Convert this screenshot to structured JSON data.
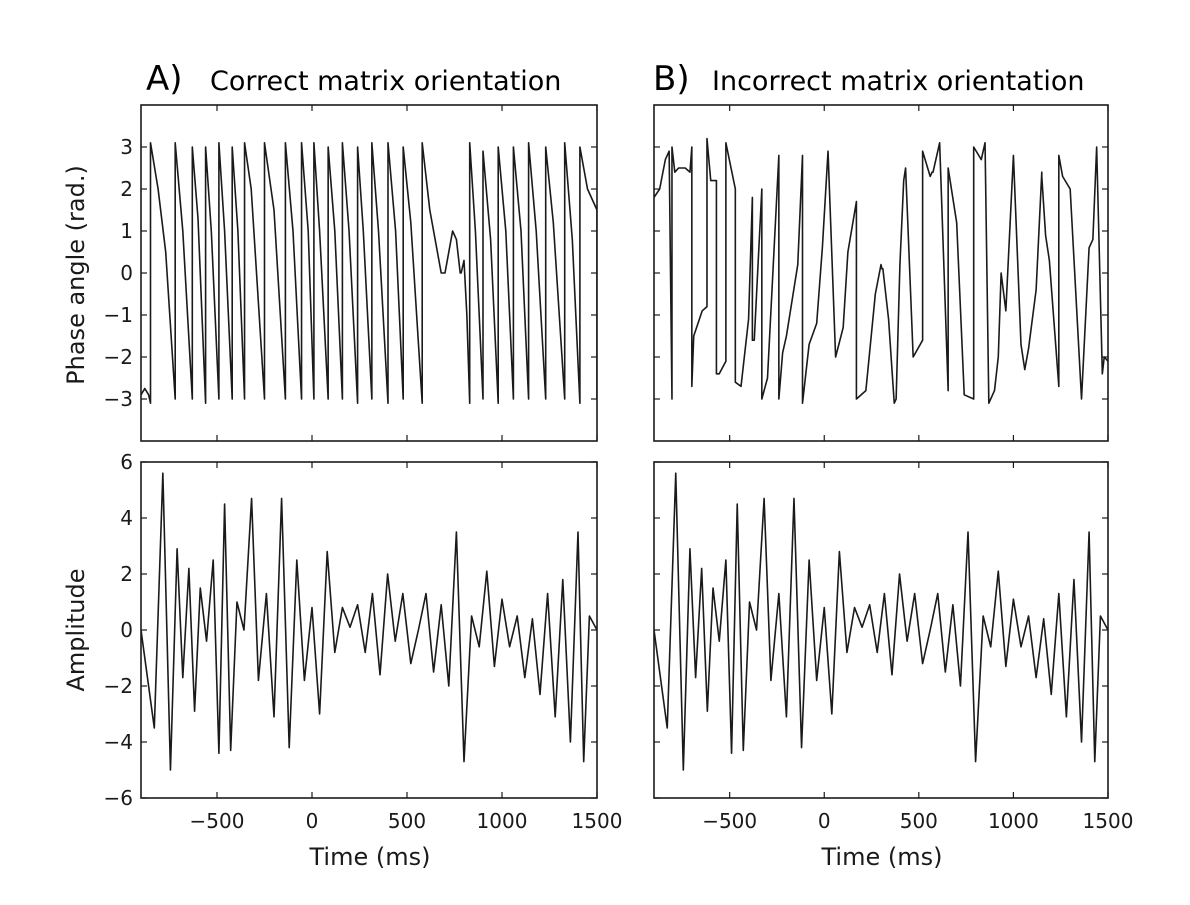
{
  "figure": {
    "panels": [
      {
        "letter": "A)",
        "title": "Correct matrix orientation"
      },
      {
        "letter": "B)",
        "title": "Incorrect matrix orientation"
      }
    ],
    "xlabel": "Time (ms)",
    "ylabel_top": "Phase angle (rad.)",
    "ylabel_bottom": "Amplitude",
    "line_color": "#1a1a1a"
  },
  "chart_data": [
    {
      "type": "line",
      "panel": "A",
      "row": "phase",
      "xlim": [
        -900,
        1500
      ],
      "ylim": [
        -4,
        4
      ],
      "xticks": [
        -500,
        0,
        500,
        1000,
        1500
      ],
      "yticks": [
        -3,
        -2,
        -1,
        0,
        1,
        2,
        3
      ],
      "ytick_labels": [
        "−3",
        "−2",
        "−1",
        "0",
        "1",
        "2",
        "3"
      ],
      "series": [
        {
          "x": [
            -900,
            -880,
            -860,
            -850,
            -850,
            -810,
            -770,
            -720,
            -720,
            -680,
            -630,
            -630,
            -600,
            -560,
            -560,
            -530,
            -490,
            -490,
            -460,
            -420,
            -420,
            -390,
            -355,
            -355,
            -320,
            -250,
            -250,
            -200,
            -140,
            -140,
            -100,
            -55,
            -55,
            -20,
            10,
            10,
            40,
            85,
            85,
            120,
            160,
            160,
            195,
            240,
            240,
            270,
            315,
            315,
            350,
            400,
            400,
            440,
            480,
            480,
            520,
            580,
            580,
            620,
            680,
            680,
            700,
            740,
            760,
            780,
            785,
            800,
            815,
            830,
            830,
            860,
            900,
            900,
            940,
            980,
            980,
            1020,
            1060,
            1060,
            1100,
            1140,
            1140,
            1180,
            1230,
            1230,
            1270,
            1330,
            1330,
            1370,
            1410,
            1410,
            1450,
            1500,
            1500
          ],
          "y": [
            -2.9,
            -2.75,
            -2.9,
            -3.1,
            3.1,
            2.0,
            0.5,
            -3.0,
            3.1,
            1.0,
            -3.0,
            3.0,
            1.3,
            -3.1,
            3.0,
            1.0,
            -3.0,
            3.1,
            1.0,
            -3.0,
            3.0,
            1.0,
            -3.0,
            3.1,
            2.0,
            -3.0,
            3.1,
            1.5,
            -3.0,
            3.1,
            1.0,
            -3.0,
            3.1,
            1.0,
            -3.0,
            3.1,
            1.0,
            -3.0,
            3.0,
            1.0,
            -3.0,
            3.1,
            1.0,
            -3.1,
            3.0,
            1.0,
            -3.0,
            3.1,
            1.0,
            -3.1,
            3.1,
            1.0,
            -3.0,
            3.0,
            1.2,
            -3.1,
            3.1,
            1.5,
            0.0,
            0.0,
            0.0,
            1.0,
            0.8,
            0.0,
            0.0,
            0.3,
            -1.0,
            -3.1,
            3.1,
            1.0,
            -3.0,
            2.9,
            0.8,
            -3.1,
            3.0,
            1.0,
            -3.0,
            3.0,
            1.0,
            -3.0,
            3.1,
            1.0,
            -3.0,
            3.0,
            1.2,
            -3.0,
            3.1,
            0.8,
            -3.1,
            3.0,
            2.0,
            1.5,
            -3.0
          ]
        }
      ]
    },
    {
      "type": "line",
      "panel": "A",
      "row": "amplitude",
      "xlim": [
        -900,
        1500
      ],
      "ylim": [
        -6,
        6
      ],
      "xticks": [
        -500,
        0,
        500,
        1000,
        1500
      ],
      "xtick_labels": [
        "−500",
        "0",
        "500",
        "1000",
        "1500"
      ],
      "yticks": [
        -6,
        -4,
        -2,
        0,
        2,
        4,
        6
      ],
      "ytick_labels": [
        "−6",
        "−4",
        "−2",
        "0",
        "2",
        "4",
        "6"
      ],
      "series": [
        {
          "x": [
            -900,
            -860,
            -830,
            -785,
            -745,
            -710,
            -680,
            -648,
            -618,
            -588,
            -555,
            -520,
            -490,
            -460,
            -428,
            -395,
            -358,
            -318,
            -282,
            -240,
            -200,
            -160,
            -120,
            -80,
            -40,
            0,
            40,
            80,
            120,
            160,
            200,
            240,
            280,
            318,
            358,
            398,
            438,
            478,
            520,
            560,
            600,
            640,
            680,
            720,
            760,
            800,
            840,
            880,
            920,
            960,
            1000,
            1040,
            1080,
            1120,
            1160,
            1200,
            1240,
            1280,
            1320,
            1360,
            1400,
            1430,
            1460,
            1500
          ],
          "y": [
            0.0,
            -2.0,
            -3.5,
            5.6,
            -5.0,
            2.9,
            -1.7,
            2.2,
            -2.9,
            1.5,
            -0.4,
            2.5,
            -4.4,
            4.5,
            -4.3,
            1.0,
            0.0,
            4.7,
            -1.8,
            1.3,
            -3.1,
            4.7,
            -4.2,
            2.5,
            -1.8,
            0.8,
            -3.0,
            2.8,
            -0.8,
            0.8,
            0.1,
            0.9,
            -0.8,
            1.3,
            -1.6,
            2.0,
            -0.4,
            1.3,
            -1.2,
            0.0,
            1.3,
            -1.5,
            0.9,
            -2.0,
            3.5,
            -4.7,
            0.5,
            -0.6,
            2.1,
            -1.3,
            1.1,
            -0.6,
            0.5,
            -1.7,
            0.4,
            -2.3,
            1.3,
            -3.1,
            1.8,
            -4.0,
            3.5,
            -4.7,
            0.5,
            0.0
          ]
        }
      ]
    },
    {
      "type": "line",
      "panel": "B",
      "row": "phase",
      "xlim": [
        -900,
        1500
      ],
      "ylim": [
        -4,
        4
      ],
      "xticks": [
        -500,
        0,
        500,
        1000,
        1500
      ],
      "yticks": [
        -3,
        -2,
        -1,
        0,
        1,
        2,
        3
      ],
      "series": [
        {
          "x": [
            -900,
            -870,
            -840,
            -820,
            -805,
            -805,
            -790,
            -770,
            -735,
            -710,
            -700,
            -700,
            -690,
            -645,
            -620,
            -620,
            -600,
            -570,
            -570,
            -555,
            -520,
            -520,
            -470,
            -470,
            -440,
            -400,
            -380,
            -380,
            -370,
            -330,
            -330,
            -300,
            -240,
            -240,
            -220,
            -200,
            -140,
            -115,
            -115,
            -80,
            -40,
            -10,
            20,
            60,
            100,
            125,
            170,
            170,
            220,
            270,
            300,
            305,
            310,
            340,
            370,
            380,
            400,
            420,
            430,
            470,
            520,
            520,
            560,
            570,
            575,
            610,
            655,
            655,
            700,
            740,
            790,
            790,
            830,
            850,
            870,
            900,
            920,
            935,
            935,
            960,
            1000,
            1000,
            1040,
            1060,
            1080,
            1120,
            1150,
            1150,
            1170,
            1190,
            1220,
            1240,
            1240,
            1260,
            1300,
            1300,
            1360,
            1400,
            1420,
            1440,
            1470,
            1480,
            1500
          ],
          "y": [
            1.8,
            2.0,
            2.7,
            2.9,
            -3.0,
            3.0,
            2.4,
            2.5,
            2.5,
            2.4,
            3.0,
            -2.7,
            -1.5,
            -0.9,
            -0.8,
            3.2,
            2.2,
            2.2,
            -2.4,
            -2.4,
            -2.1,
            3.1,
            2.0,
            -2.6,
            -2.7,
            -1.1,
            1.8,
            -1.6,
            -1.6,
            2.0,
            -3.0,
            -2.5,
            2.8,
            -3.0,
            -1.9,
            -1.5,
            0.2,
            2.8,
            -3.1,
            -1.7,
            -1.2,
            0.6,
            2.9,
            -2.0,
            -1.3,
            0.5,
            1.7,
            -3.0,
            -2.8,
            -0.5,
            0.2,
            0.1,
            0.1,
            -1.1,
            -3.1,
            -3.0,
            0.2,
            2.2,
            2.5,
            -2.0,
            -1.6,
            2.9,
            2.3,
            2.4,
            2.4,
            3.1,
            -2.8,
            2.5,
            1.2,
            -2.9,
            -3.0,
            3.0,
            2.7,
            3.1,
            -3.1,
            -2.8,
            -2.0,
            0.0,
            0.0,
            -0.9,
            2.8,
            2.8,
            -1.7,
            -2.3,
            -1.8,
            -0.4,
            2.4,
            2.3,
            0.9,
            0.3,
            -1.5,
            -2.7,
            2.8,
            2.3,
            2.0,
            2.0,
            -3.0,
            0.6,
            0.8,
            3.0,
            -2.4,
            -2.0,
            -2.1
          ]
        }
      ]
    },
    {
      "type": "line",
      "panel": "B",
      "row": "amplitude",
      "xlim": [
        -900,
        1500
      ],
      "ylim": [
        -6,
        6
      ],
      "xticks": [
        -500,
        0,
        500,
        1000,
        1500
      ],
      "xtick_labels": [
        "−500",
        "0",
        "500",
        "1000",
        "1500"
      ],
      "yticks": [
        -6,
        -4,
        -2,
        0,
        2,
        4,
        6
      ],
      "series": [
        {
          "x": [
            -900,
            -860,
            -830,
            -785,
            -745,
            -710,
            -680,
            -648,
            -618,
            -588,
            -555,
            -520,
            -490,
            -460,
            -428,
            -395,
            -358,
            -318,
            -282,
            -240,
            -200,
            -160,
            -120,
            -80,
            -40,
            0,
            40,
            80,
            120,
            160,
            200,
            240,
            280,
            318,
            358,
            398,
            438,
            478,
            520,
            560,
            600,
            640,
            680,
            720,
            760,
            800,
            840,
            880,
            920,
            960,
            1000,
            1040,
            1080,
            1120,
            1160,
            1200,
            1240,
            1280,
            1320,
            1360,
            1400,
            1430,
            1460,
            1500
          ],
          "y": [
            0.0,
            -2.0,
            -3.5,
            5.6,
            -5.0,
            2.9,
            -1.7,
            2.2,
            -2.9,
            1.5,
            -0.4,
            2.5,
            -4.4,
            4.5,
            -4.3,
            1.0,
            0.0,
            4.7,
            -1.8,
            1.3,
            -3.1,
            4.7,
            -4.2,
            2.5,
            -1.8,
            0.8,
            -3.0,
            2.8,
            -0.8,
            0.8,
            0.1,
            0.9,
            -0.8,
            1.3,
            -1.6,
            2.0,
            -0.4,
            1.3,
            -1.2,
            0.0,
            1.3,
            -1.5,
            0.9,
            -2.0,
            3.5,
            -4.7,
            0.5,
            -0.6,
            2.1,
            -1.3,
            1.1,
            -0.6,
            0.5,
            -1.7,
            0.4,
            -2.3,
            1.3,
            -3.1,
            1.8,
            -4.0,
            3.5,
            -4.7,
            0.5,
            0.0
          ]
        }
      ]
    }
  ]
}
